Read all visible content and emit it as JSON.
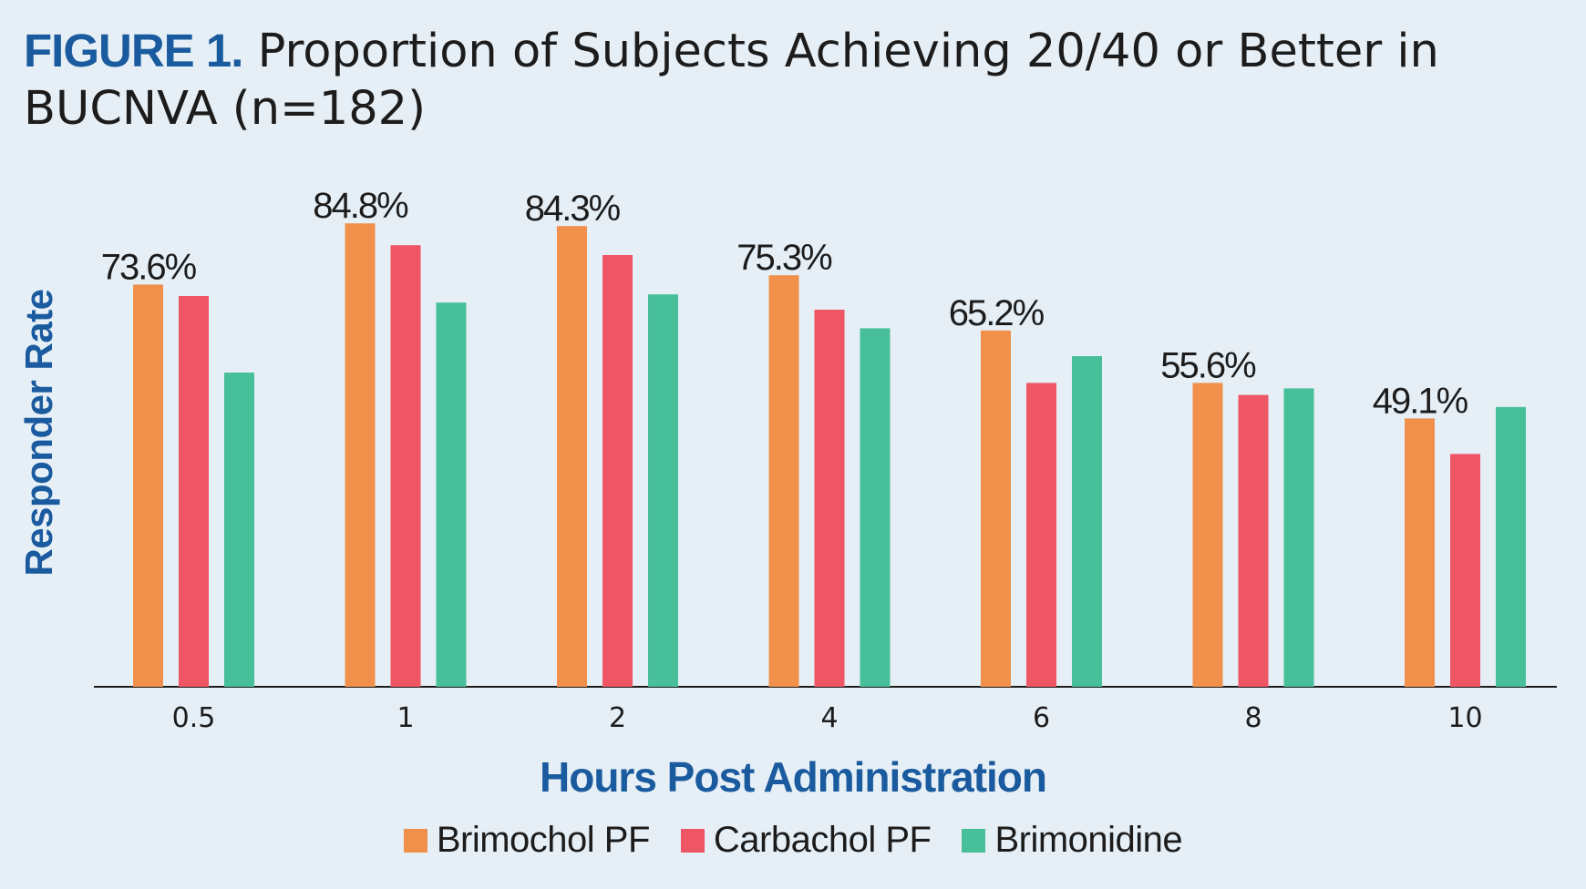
{
  "title": {
    "figure_label": "FIGURE 1.",
    "text": "Proportion of Subjects Achieving 20/40 or Better in BUCNVA (n=182)"
  },
  "colors": {
    "background": "#e6eff6",
    "brand_blue": "#1a5a9e",
    "Brimochol PF": "#f0904a",
    "Carbachol PF": "#ee5565",
    "Brimonidine": "#47bf98"
  },
  "chart_data": {
    "type": "bar",
    "title": "Proportion of Subjects Achieving 20/40 or Better in BUCNVA (n=182)",
    "xlabel": "Hours Post Administration",
    "ylabel": "Responder Rate",
    "categories": [
      "0.5",
      "1",
      "2",
      "4",
      "6",
      "8",
      "10"
    ],
    "ylim": [
      0,
      100
    ],
    "grid": false,
    "legend_position": "bottom",
    "series": [
      {
        "name": "Brimochol PF",
        "values": [
          73.6,
          84.8,
          84.3,
          75.3,
          65.2,
          55.6,
          49.1
        ]
      },
      {
        "name": "Carbachol PF",
        "values": [
          71.5,
          80.8,
          79.0,
          69.0,
          55.6,
          53.4,
          42.6
        ]
      },
      {
        "name": "Brimonidine",
        "values": [
          57.5,
          70.3,
          71.8,
          65.6,
          60.5,
          54.6,
          51.2
        ]
      }
    ],
    "data_labels": [
      "73.6%",
      "84.8%",
      "84.3%",
      "75.3%",
      "65.2%",
      "55.6%",
      "49.1%"
    ]
  }
}
